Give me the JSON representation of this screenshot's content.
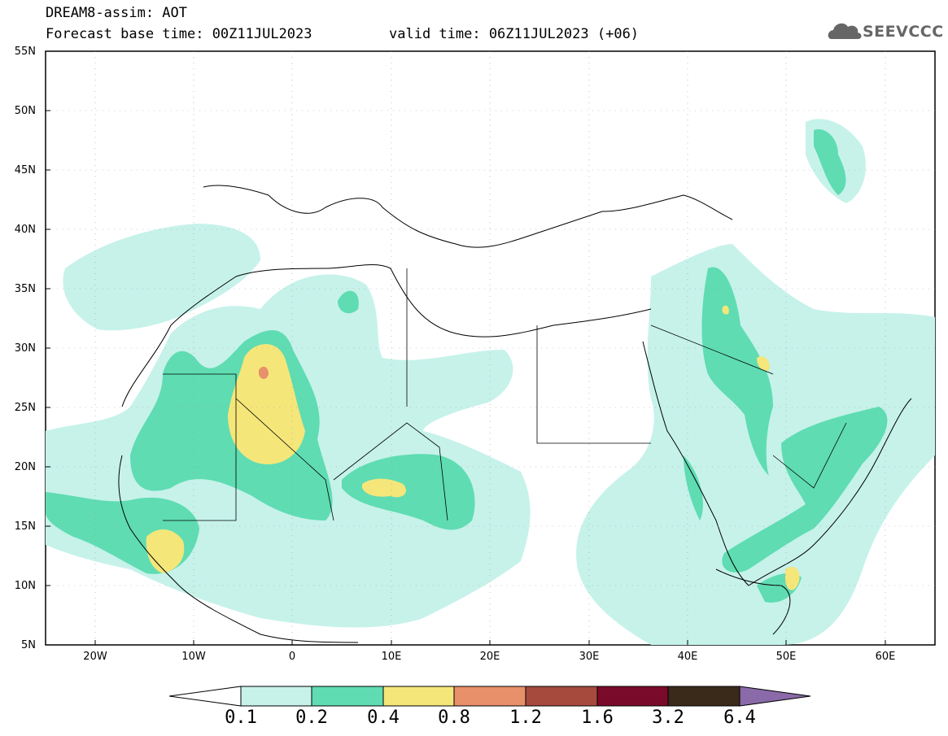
{
  "header": {
    "line1": "DREAM8-assim: AOT",
    "line2a": "Forecast base time: 00Z11JUL2023",
    "line2b": "valid time: 06Z11JUL2023 (+06)"
  },
  "logo": {
    "text": "SEEVCCC",
    "icon": "cloud-logo-icon"
  },
  "axes": {
    "y_ticks": [
      "55N",
      "50N",
      "45N",
      "40N",
      "35N",
      "30N",
      "25N",
      "20N",
      "15N",
      "10N",
      "5N"
    ],
    "x_ticks": [
      "20W",
      "10W",
      "0",
      "10E",
      "20E",
      "30E",
      "40E",
      "50E",
      "60E"
    ]
  },
  "colorbar": {
    "labels": [
      "0.1",
      "0.2",
      "0.4",
      "0.8",
      "1.2",
      "1.6",
      "3.2",
      "6.4"
    ],
    "colors": [
      "#ffffff",
      "#c6f2ea",
      "#5fdcb2",
      "#f5e67a",
      "#e8906a",
      "#a64a3e",
      "#7a0a2a",
      "#3a2a1a",
      "#8a6aa8"
    ]
  }
}
